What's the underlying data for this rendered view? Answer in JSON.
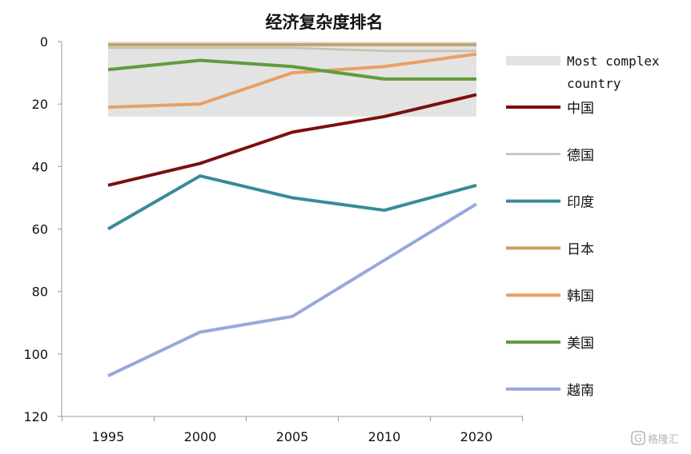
{
  "chart_data": {
    "type": "line",
    "title": "经济复杂度排名",
    "xlabel": "",
    "ylabel": "",
    "x": [
      1995,
      2000,
      2005,
      2010,
      2020
    ],
    "x_tick_labels": [
      "1995",
      "2000",
      "2005",
      "2010",
      "2020"
    ],
    "y_inverted": true,
    "ylim": [
      0,
      120
    ],
    "yticks": [
      0,
      20,
      40,
      60,
      80,
      100,
      120
    ],
    "grid": false,
    "legend_position": "right",
    "band": {
      "name": "Most complex country",
      "y_range": [
        0,
        24
      ],
      "color": "#e3e3e3"
    },
    "series": [
      {
        "name": "中国",
        "color": "#7b1010",
        "values": [
          46,
          39,
          29,
          24,
          17
        ]
      },
      {
        "name": "德国",
        "color": "#c4c1b0",
        "values": [
          2,
          2,
          2,
          3,
          3
        ]
      },
      {
        "name": "印度",
        "color": "#3a8a99",
        "values": [
          60,
          43,
          50,
          54,
          46
        ]
      },
      {
        "name": "日本",
        "color": "#c2a566",
        "values": [
          1,
          1,
          1,
          1,
          1
        ]
      },
      {
        "name": "韩国",
        "color": "#e8a065",
        "values": [
          21,
          20,
          10,
          8,
          4
        ]
      },
      {
        "name": "美国",
        "color": "#5f9c3c",
        "values": [
          9,
          6,
          8,
          12,
          12
        ]
      },
      {
        "name": "越南",
        "color": "#98a8dc",
        "values": [
          107,
          93,
          88,
          70,
          52
        ]
      }
    ]
  },
  "watermark": {
    "icon": "g-logo-icon",
    "text": "格隆汇"
  }
}
